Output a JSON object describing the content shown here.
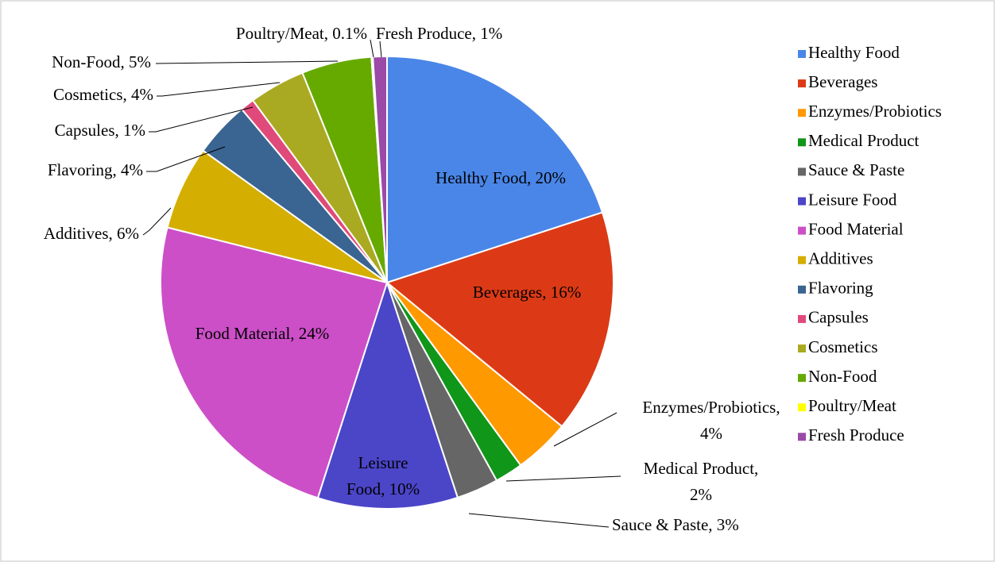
{
  "chart_data": {
    "type": "pie",
    "categories": [
      "Healthy Food",
      "Beverages",
      "Enzymes/Probiotics",
      "Medical Product",
      "Sauce & Paste",
      "Leisure Food",
      "Food Material",
      "Additives",
      "Flavoring",
      "Capsules",
      "Cosmetics",
      "Non-Food",
      "Poultry/Meat",
      "Fresh Produce"
    ],
    "values": [
      20,
      16,
      4,
      2,
      3,
      10,
      24,
      6,
      4,
      1,
      4,
      5,
      0.1,
      1
    ],
    "value_labels": [
      "Healthy Food, 20%",
      "Beverages, 16%",
      "Enzymes/Probiotics, 4%",
      "Medical Product, 2%",
      "Sauce & Paste, 3%",
      "Leisure Food, 10%",
      "Food Material, 24%",
      "Additives, 6%",
      "Flavoring, 4%",
      "Capsules, 1%",
      "Cosmetics, 4%",
      "Non-Food, 5%",
      "Poultry/Meat, 0.1%",
      "Fresh Produce, 1%"
    ],
    "colors": [
      "#4a86e8",
      "#dc3a16",
      "#ff9900",
      "#109618",
      "#666666",
      "#4b45c8",
      "#cc4fc8",
      "#d4ae00",
      "#3a6491",
      "#e04a7a",
      "#aaaa22",
      "#66aa00",
      "#ffff00",
      "#9b4aa8"
    ],
    "legend": "right"
  }
}
